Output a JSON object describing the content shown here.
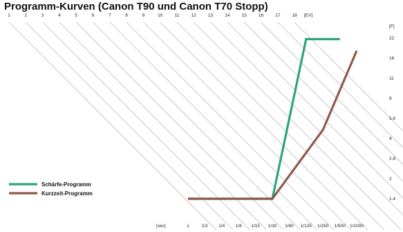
{
  "chart_data": {
    "type": "line",
    "title": "Programm-Kurven (Canon T90 und Canon T70 Stopp)",
    "top_axis": {
      "ticks": [
        "1",
        "2",
        "3",
        "4",
        "5",
        "6",
        "7",
        "8",
        "9",
        "10",
        "11",
        "12",
        "13",
        "14",
        "15",
        "16",
        "17",
        "18"
      ],
      "unit_label": "[EV]"
    },
    "x_axis": {
      "label": "[sec]",
      "ticks": [
        "1",
        "1/2",
        "1/4",
        "1/8",
        "1/15",
        "1/30",
        "1/60",
        "1/125",
        "1/250",
        "1/500",
        "1/1000"
      ]
    },
    "y_axis": {
      "label": "[F]",
      "ticks": [
        "1.4",
        "2",
        "2.8",
        "4",
        "5.6",
        "8",
        "11",
        "16",
        "22"
      ]
    },
    "series": [
      {
        "name": "Schärfe-Programm",
        "color": "#2aa57f",
        "points": [
          {
            "x": "1",
            "y": 1.4
          },
          {
            "x": "1/30",
            "y": 1.4
          },
          {
            "x": "1/125",
            "y": 22
          },
          {
            "x": "1/500",
            "y": 22
          }
        ]
      },
      {
        "name": "Kurzzeit-Programm",
        "color": "#8e5a4a",
        "points": [
          {
            "x": "1",
            "y": 1.4
          },
          {
            "x": "1/30",
            "y": 1.4
          },
          {
            "x": "1/250",
            "y": 4.6
          },
          {
            "x": "1/1000",
            "y": 18
          }
        ]
      }
    ],
    "legend": {
      "position": "lower-left"
    }
  }
}
